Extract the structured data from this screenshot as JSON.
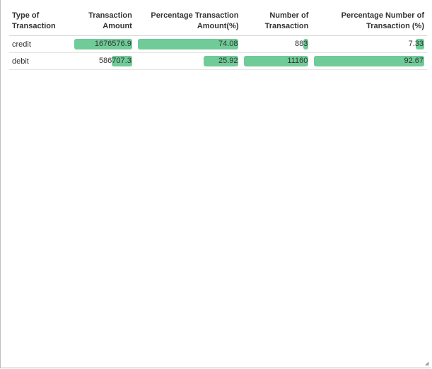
{
  "headers": {
    "type": [
      "Type of",
      "Transaction"
    ],
    "amount": [
      "Transaction",
      "Amount"
    ],
    "pct_amount": [
      "Percentage Transaction",
      "Amount(%)"
    ],
    "number": [
      "Number of",
      "Transaction"
    ],
    "pct_number": [
      "Percentage Number of",
      "Transaction (%)"
    ]
  },
  "rows": [
    {
      "type": "credit",
      "amount": "1676576.9",
      "amount_fill": 1.0,
      "pct_amount": "74.08",
      "pct_amount_fill": 1.0,
      "number": "883",
      "number_fill": 0.08,
      "pct_number": "7.33",
      "pct_number_fill": 0.08
    },
    {
      "type": "debit",
      "amount": "586707.3",
      "amount_fill": 0.35,
      "pct_amount": "25.92",
      "pct_amount_fill": 0.35,
      "number": "11160",
      "number_fill": 1.0,
      "pct_number": "92.67",
      "pct_number_fill": 1.0
    }
  ],
  "colors": {
    "bar": "#6fcb97",
    "border": "#bdbdbd"
  }
}
